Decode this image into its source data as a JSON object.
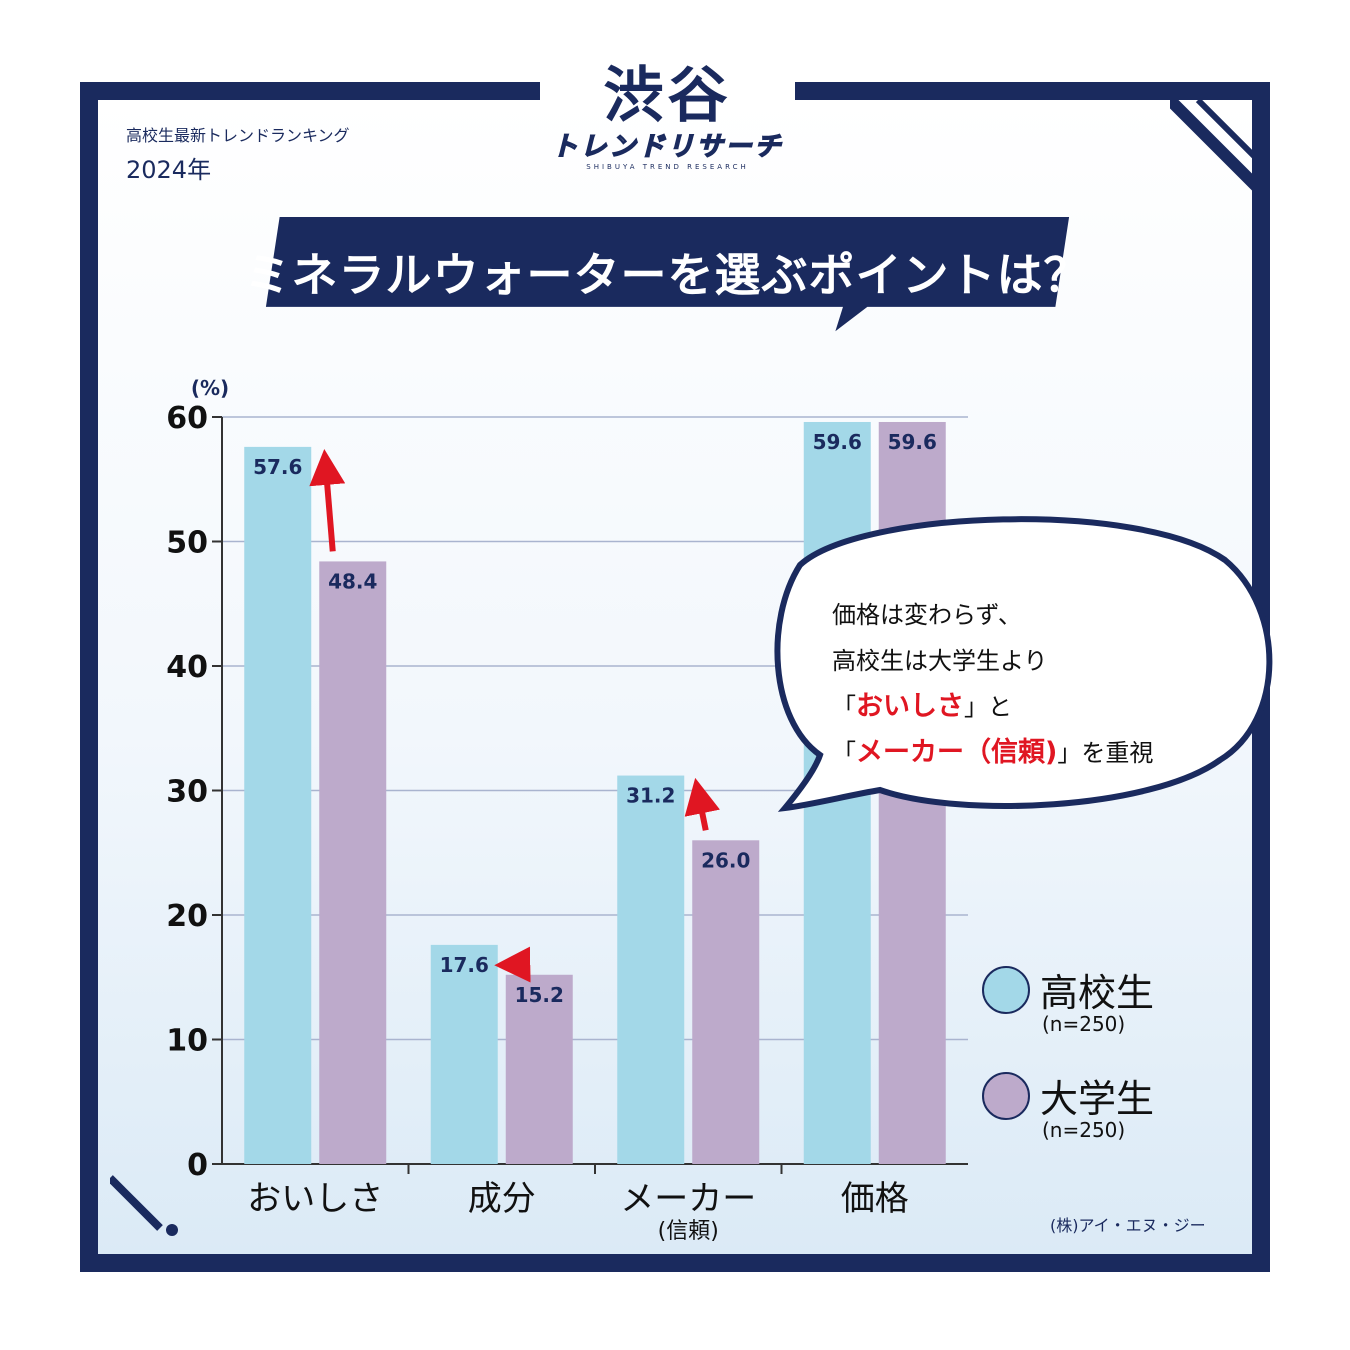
{
  "logo": {
    "main": "渋谷",
    "sub": "トレンドリサーチ",
    "en": "SHIBUYA TREND RESEARCH"
  },
  "header": {
    "subtitle": "高校生最新トレンドランキング",
    "year": "2024年"
  },
  "headline": "ミネラルウォーターを選ぶポイントは？",
  "colors": {
    "navy": "#1a2a5e",
    "high_school": "#a3d8e8",
    "university": "#bdaacb",
    "accent": "#e01622"
  },
  "chart_data": {
    "type": "bar",
    "unit_label": "(%)",
    "categories": [
      "おいしさ",
      "成分",
      "メーカー",
      "価格"
    ],
    "category_sublabels": [
      "",
      "",
      "(信頼)",
      ""
    ],
    "series": [
      {
        "name": "高校生",
        "n": "(n=250)",
        "values": [
          57.6,
          17.6,
          31.2,
          59.6
        ]
      },
      {
        "name": "大学生",
        "n": "(n=250)",
        "values": [
          48.4,
          15.2,
          26.0,
          59.6
        ]
      }
    ],
    "value_labels": [
      [
        "57.6",
        "17.6",
        "31.2",
        "59.6"
      ],
      [
        "48.4",
        "15.2",
        "26.0",
        "59.6"
      ]
    ],
    "ylim": [
      0,
      60
    ],
    "yticks": [
      0,
      10,
      20,
      30,
      40,
      50,
      60
    ],
    "grid": true,
    "legend_position": "bottom-right",
    "arrows_from_university_to_high_school": [
      "おいしさ",
      "成分",
      "メーカー"
    ]
  },
  "callout": {
    "line1": "価格は変わらず、",
    "line2": "高校生は大学生より",
    "line3_open": "「",
    "line3_em": "おいしさ",
    "line3_close": "」と",
    "line4_open": "「",
    "line4_em": "メーカー（信頼)",
    "line4_close": "」を重視"
  },
  "source": "(株)アイ・エヌ・ジー"
}
